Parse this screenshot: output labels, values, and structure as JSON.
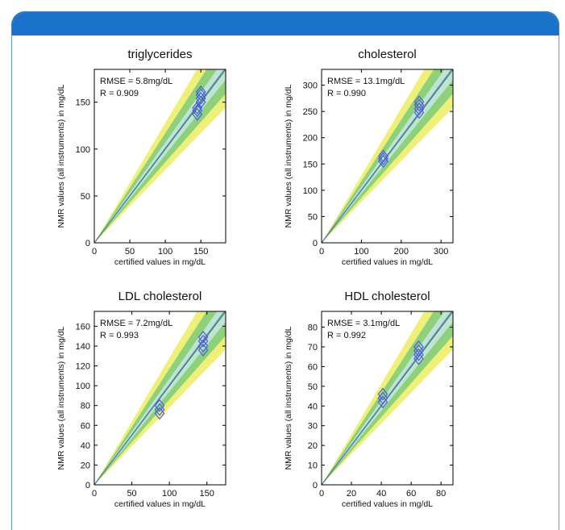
{
  "colors": {
    "header_blue": "#1a73c8",
    "border_blue": "#2a78c6",
    "band_yellow": "#eef07a",
    "band_green": "#8fd07a",
    "band_cyan": "#bfe3d6",
    "marker_blue": "#4a5fd4",
    "line_blue": "#5a6fe0"
  },
  "chart_data": [
    {
      "type": "scatter",
      "title": "triglycerides",
      "xlabel": "certified values in mg/dL",
      "ylabel": "NMR values (all instruments) in mg/dL",
      "xlim": [
        0,
        185
      ],
      "ylim": [
        0,
        185
      ],
      "xticks": [
        0,
        50,
        100,
        150
      ],
      "yticks": [
        0,
        50,
        100,
        150
      ],
      "annotations": [
        "RMSE = 5.8mg/dL",
        "R = 0.909"
      ],
      "points": [
        {
          "x": 145,
          "y": 137
        },
        {
          "x": 145,
          "y": 141
        },
        {
          "x": 145,
          "y": 144
        },
        {
          "x": 150,
          "y": 150
        },
        {
          "x": 150,
          "y": 154
        },
        {
          "x": 150,
          "y": 158
        },
        {
          "x": 150,
          "y": 161
        }
      ]
    },
    {
      "type": "scatter",
      "title": "cholesterol",
      "xlabel": "certified values in mg/dL",
      "ylabel": "NMR values (all instruments) in mg/dL",
      "xlim": [
        0,
        330
      ],
      "ylim": [
        0,
        330
      ],
      "xticks": [
        0,
        100,
        200,
        300
      ],
      "yticks": [
        0,
        50,
        100,
        150,
        200,
        250,
        300
      ],
      "annotations": [
        "RMSE = 13.1mg/dL",
        "R = 0.990"
      ],
      "points": [
        {
          "x": 155,
          "y": 155
        },
        {
          "x": 155,
          "y": 160
        },
        {
          "x": 155,
          "y": 165
        },
        {
          "x": 245,
          "y": 248
        },
        {
          "x": 245,
          "y": 255
        },
        {
          "x": 245,
          "y": 262
        },
        {
          "x": 245,
          "y": 268
        }
      ]
    },
    {
      "type": "scatter",
      "title": "LDL cholesterol",
      "xlabel": "certified values in mg/dL",
      "ylabel": "NMR values (all instruments) in mg/dL",
      "xlim": [
        0,
        175
      ],
      "ylim": [
        0,
        175
      ],
      "xticks": [
        0,
        50,
        100,
        150
      ],
      "yticks": [
        0,
        20,
        40,
        60,
        80,
        100,
        120,
        140,
        160
      ],
      "annotations": [
        "RMSE = 7.2mg/dL",
        "R = 0.993"
      ],
      "points": [
        {
          "x": 87,
          "y": 72
        },
        {
          "x": 87,
          "y": 76
        },
        {
          "x": 87,
          "y": 80
        },
        {
          "x": 145,
          "y": 136
        },
        {
          "x": 145,
          "y": 140
        },
        {
          "x": 145,
          "y": 145
        },
        {
          "x": 145,
          "y": 149
        }
      ]
    },
    {
      "type": "scatter",
      "title": "HDL cholesterol",
      "xlabel": "certified values in mg/dL",
      "ylabel": "NMR values (all instruments) in mg/dL",
      "xlim": [
        0,
        88
      ],
      "ylim": [
        0,
        88
      ],
      "xticks": [
        0,
        20,
        40,
        60,
        80
      ],
      "yticks": [
        0,
        10,
        20,
        30,
        40,
        50,
        60,
        70,
        80
      ],
      "annotations": [
        "RMSE = 3.1mg/dL",
        "R = 0.992"
      ],
      "points": [
        {
          "x": 41,
          "y": 42
        },
        {
          "x": 41,
          "y": 44
        },
        {
          "x": 41,
          "y": 46
        },
        {
          "x": 65,
          "y": 64
        },
        {
          "x": 65,
          "y": 66
        },
        {
          "x": 65,
          "y": 68
        },
        {
          "x": 65,
          "y": 70
        }
      ]
    }
  ]
}
